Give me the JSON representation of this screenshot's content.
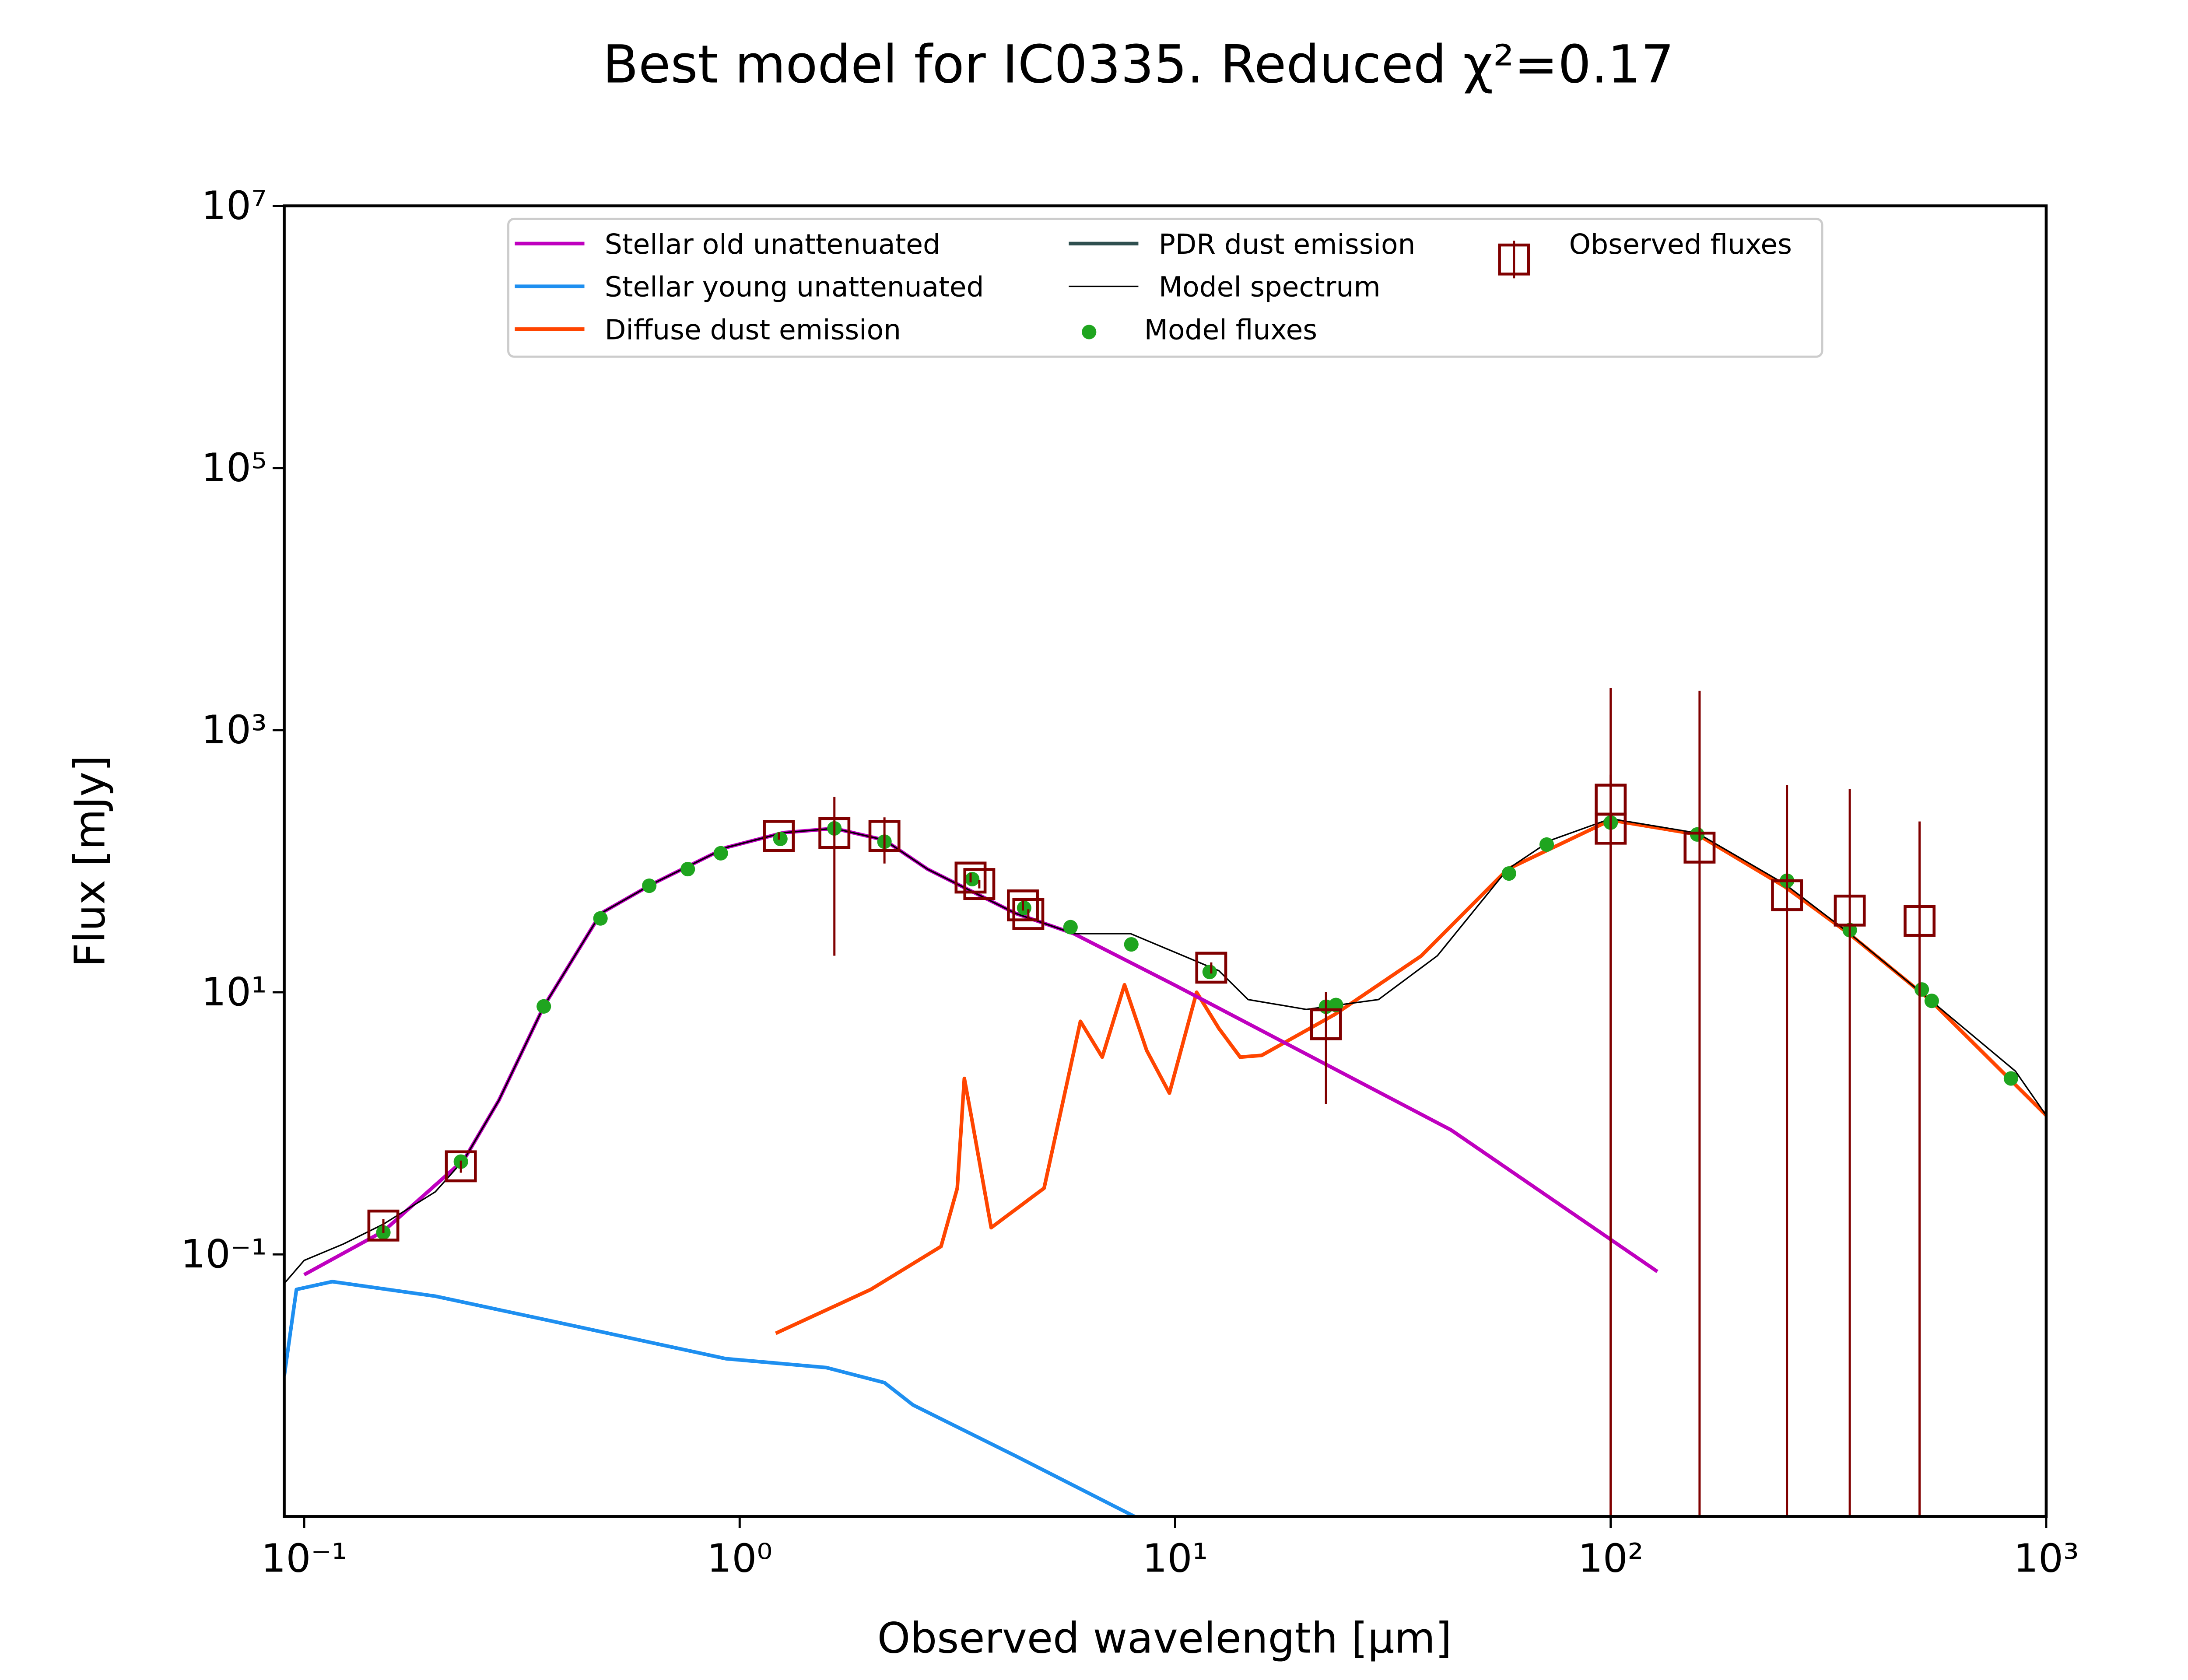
{
  "chart_data": {
    "type": "line",
    "title": "Best model for IC0335. Reduced χ²=0.17",
    "x_label": "Observed wavelength [μm]",
    "y_label": "Flux [mJy]",
    "x_scale": "log",
    "y_scale": "log",
    "xlim": [
      0.09,
      1000
    ],
    "ylim": [
      0.001,
      10000000
    ],
    "xticks": [
      {
        "value": 0.1,
        "label": "10⁻¹"
      },
      {
        "value": 1,
        "label": "10⁰"
      },
      {
        "value": 10,
        "label": "10¹"
      },
      {
        "value": 100,
        "label": "10²"
      },
      {
        "value": 1000,
        "label": "10³"
      }
    ],
    "yticks": [
      {
        "value": 0.1,
        "label": "10⁻¹"
      },
      {
        "value": 10,
        "label": "10¹"
      },
      {
        "value": 1000,
        "label": "10³"
      },
      {
        "value": 100000,
        "label": "10⁵"
      },
      {
        "value": 10000000,
        "label": "10⁷"
      }
    ],
    "grid": false,
    "legend": "upper center",
    "legend_columns": 3,
    "series": [
      {
        "name": "Stellar old unattenuated",
        "color": "#bf00bf",
        "marker": "line",
        "width": 2.5,
        "x": [
          0.1,
          0.152,
          0.233,
          0.28,
          0.355,
          0.48,
          0.63,
          0.93,
          1.26,
          1.65,
          2.15,
          2.7,
          4.3,
          5.85,
          10,
          43,
          128
        ],
        "values": [
          0.07,
          0.15,
          0.53,
          1.5,
          7.8,
          40,
          67,
          127,
          165,
          178,
          145,
          87,
          40,
          28,
          11.3,
          0.89,
          0.074
        ]
      },
      {
        "name": "Stellar young unattenuated",
        "color": "#1e8ff0",
        "marker": "line",
        "width": 2.5,
        "x": [
          0.09,
          0.096,
          0.116,
          0.2,
          0.37,
          0.93,
          1.58,
          2.15,
          2.5,
          4.3,
          8.07
        ],
        "values": [
          0.0118,
          0.054,
          0.062,
          0.048,
          0.031,
          0.016,
          0.0137,
          0.0105,
          0.0071,
          0.0029,
          0.001
        ]
      },
      {
        "name": "Diffuse dust emission",
        "color": "#ff4500",
        "marker": "line",
        "width": 2.5,
        "x": [
          1.21,
          2,
          2.9,
          3.16,
          3.28,
          3.4,
          3.78,
          5,
          6.06,
          6.8,
          7.65,
          8.6,
          9.7,
          11.2,
          12.6,
          14.1,
          15.8,
          23.3,
          36.7,
          58,
          100,
          158,
          251,
          354,
          540,
          1000
        ],
        "values": [
          0.025,
          0.054,
          0.115,
          0.32,
          2.2,
          1.15,
          0.16,
          0.32,
          6,
          3.2,
          11.4,
          3.6,
          1.7,
          10,
          5.3,
          3.2,
          3.3,
          6.8,
          18.9,
          87,
          206,
          160,
          64,
          27.7,
          8.8,
          1.15
        ]
      },
      {
        "name": "PDR dust emission",
        "color": "#2f4f4f",
        "marker": "line",
        "width": 2.5,
        "x": [],
        "values": []
      },
      {
        "name": "Model spectrum",
        "color": "#000000",
        "marker": "line",
        "width": 1,
        "x": [
          0.09,
          0.1,
          0.123,
          0.152,
          0.2,
          0.233,
          0.28,
          0.355,
          0.48,
          0.63,
          0.93,
          1.26,
          1.65,
          2.15,
          2.7,
          4.3,
          5.85,
          7.9,
          12.6,
          14.7,
          20,
          29.3,
          40,
          58,
          73,
          100,
          158,
          251,
          354,
          540,
          850,
          1000
        ],
        "values": [
          0.06,
          0.09,
          0.12,
          0.17,
          0.3,
          0.53,
          1.5,
          7.8,
          40,
          67,
          127,
          165,
          178,
          145,
          87,
          40,
          28,
          28,
          14.6,
          8.8,
          7.4,
          8.8,
          19,
          87,
          145,
          211,
          164,
          67,
          28,
          8.8,
          2.5,
          1.15
        ]
      },
      {
        "name": "Model fluxes",
        "color": "#1fa51f",
        "marker": "dot",
        "x": [
          0.152,
          0.229,
          0.355,
          0.479,
          0.62,
          0.76,
          0.905,
          1.24,
          1.65,
          2.15,
          3.42,
          4.5,
          5.75,
          7.93,
          12,
          22.2,
          23.4,
          58.4,
          71.3,
          100,
          158,
          254,
          354,
          518,
          546,
          830
        ],
        "values": [
          0.147,
          0.51,
          7.8,
          36.6,
          65,
          87,
          115,
          148,
          178,
          141,
          73,
          44,
          31.4,
          23.2,
          14.3,
          7.76,
          8,
          80.6,
          134,
          197,
          160,
          71,
          29.8,
          10.5,
          8.6,
          2.2
        ]
      },
      {
        "name": "Observed fluxes",
        "color": "#800000",
        "marker": "square",
        "x": [
          0.152,
          0.229,
          1.23,
          1.65,
          2.15,
          3.39,
          3.55,
          4.47,
          4.6,
          12.1,
          22.2,
          100,
          100,
          160,
          254,
          354,
          512
        ],
        "values": [
          0.166,
          0.47,
          156,
          164,
          156,
          75,
          67,
          46,
          39.5,
          15.4,
          5.7,
          295,
          177,
          127,
          55,
          42,
          35
        ],
        "errors": [
          0.02,
          0.05,
          10,
          145,
          60,
          6,
          5,
          4,
          3.5,
          1.5,
          4.3,
          1800,
          280,
          1870,
          327,
          313,
          166
        ]
      }
    ]
  }
}
